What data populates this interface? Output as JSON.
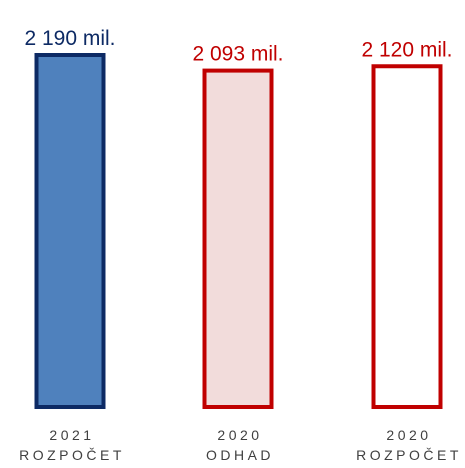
{
  "chart_data": {
    "type": "bar",
    "categories": [
      [
        "2021",
        "ROZPOČET"
      ],
      [
        "2020",
        "ODHAD"
      ],
      [
        "2020",
        "ROZPOČET"
      ]
    ],
    "values": [
      2190,
      2093,
      2120
    ],
    "data_labels": [
      "2 190 mil.",
      "2 093 mil.",
      "2 120 mil."
    ],
    "unit": "mil.",
    "bar_styles": [
      {
        "fill": "#4f81bd",
        "stroke": "#0d2a64",
        "label_color": "#0d2a64"
      },
      {
        "fill": "#f2dcdb",
        "stroke": "#c00000",
        "label_color": "#c00000"
      },
      {
        "fill": "#ffffff",
        "stroke": "#c00000",
        "label_color": "#c00000"
      }
    ],
    "grid": false,
    "legend": "none"
  }
}
